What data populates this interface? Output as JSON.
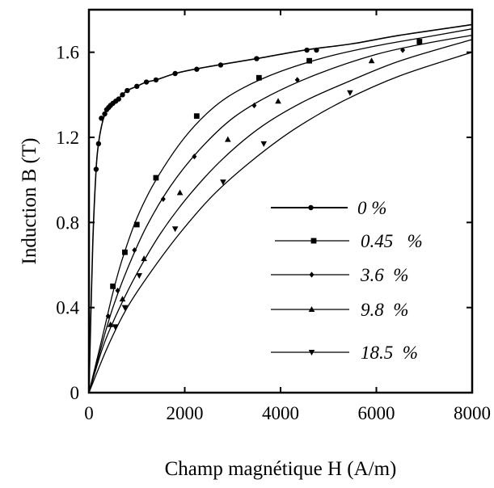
{
  "chart_data": {
    "type": "line",
    "xlabel": "Champ magnétique H (A/m)",
    "ylabel": "Induction B (T)",
    "xlim": [
      0,
      8000
    ],
    "ylim": [
      0,
      1.8
    ],
    "x_ticks": [
      0,
      2000,
      4000,
      6000,
      8000
    ],
    "y_ticks": [
      0,
      0.4,
      0.8,
      1.2,
      1.6
    ],
    "x_tick_labels": [
      "0",
      "2000",
      "4000",
      "6000",
      "8000"
    ],
    "y_tick_labels": [
      "0",
      "0.4",
      "0.8",
      "1.2",
      "1.6"
    ],
    "grid": false,
    "legend_position": "center-right",
    "series": [
      {
        "name": "0 %",
        "marker": "circle",
        "points": [
          [
            0,
            0
          ],
          [
            80,
            0.7
          ],
          [
            150,
            1.05
          ],
          [
            200,
            1.17
          ],
          [
            260,
            1.25
          ],
          [
            320,
            1.3
          ],
          [
            380,
            1.33
          ],
          [
            450,
            1.35
          ],
          [
            550,
            1.37
          ],
          [
            650,
            1.39
          ],
          [
            800,
            1.42
          ],
          [
            1000,
            1.44
          ],
          [
            1200,
            1.46
          ],
          [
            1400,
            1.47
          ],
          [
            1800,
            1.5
          ],
          [
            2200,
            1.52
          ],
          [
            2700,
            1.54
          ],
          [
            3500,
            1.57
          ],
          [
            4500,
            1.61
          ],
          [
            5500,
            1.64
          ],
          [
            6500,
            1.68
          ],
          [
            8000,
            1.73
          ]
        ],
        "markers": [
          [
            150,
            1.05
          ],
          [
            200,
            1.17
          ],
          [
            260,
            1.29
          ],
          [
            330,
            1.31
          ],
          [
            370,
            1.33
          ],
          [
            410,
            1.34
          ],
          [
            450,
            1.35
          ],
          [
            500,
            1.36
          ],
          [
            560,
            1.37
          ],
          [
            620,
            1.38
          ],
          [
            700,
            1.4
          ],
          [
            800,
            1.42
          ],
          [
            1000,
            1.44
          ],
          [
            1200,
            1.46
          ],
          [
            1400,
            1.47
          ],
          [
            1800,
            1.5
          ],
          [
            2250,
            1.52
          ],
          [
            2750,
            1.54
          ],
          [
            3500,
            1.57
          ],
          [
            4550,
            1.61
          ],
          [
            4750,
            1.61
          ]
        ]
      },
      {
        "name": "0.45   %",
        "marker": "square",
        "points": [
          [
            0,
            0
          ],
          [
            300,
            0.28
          ],
          [
            500,
            0.47
          ],
          [
            700,
            0.63
          ],
          [
            1000,
            0.82
          ],
          [
            1400,
            1.0
          ],
          [
            2000,
            1.2
          ],
          [
            2600,
            1.34
          ],
          [
            3200,
            1.43
          ],
          [
            4000,
            1.51
          ],
          [
            5000,
            1.58
          ],
          [
            6000,
            1.63
          ],
          [
            7000,
            1.67
          ],
          [
            8000,
            1.71
          ]
        ],
        "markers": [
          [
            500,
            0.5
          ],
          [
            750,
            0.66
          ],
          [
            1000,
            0.79
          ],
          [
            1400,
            1.01
          ],
          [
            2250,
            1.3
          ],
          [
            3550,
            1.48
          ],
          [
            4600,
            1.56
          ],
          [
            6900,
            1.65
          ]
        ]
      },
      {
        "name": "3.6  %",
        "marker": "diamond",
        "points": [
          [
            0,
            0
          ],
          [
            300,
            0.25
          ],
          [
            500,
            0.4
          ],
          [
            800,
            0.58
          ],
          [
            1200,
            0.78
          ],
          [
            1700,
            0.97
          ],
          [
            2300,
            1.14
          ],
          [
            3000,
            1.29
          ],
          [
            3800,
            1.4
          ],
          [
            4800,
            1.5
          ],
          [
            6000,
            1.59
          ],
          [
            7000,
            1.64
          ],
          [
            8000,
            1.68
          ]
        ],
        "markers": [
          [
            400,
            0.36
          ],
          [
            600,
            0.48
          ],
          [
            950,
            0.67
          ],
          [
            1550,
            0.91
          ],
          [
            2200,
            1.11
          ],
          [
            3450,
            1.35
          ],
          [
            4350,
            1.47
          ],
          [
            6550,
            1.61
          ]
        ]
      },
      {
        "name": "9.8  %",
        "marker": "triangle-up",
        "points": [
          [
            0,
            0
          ],
          [
            300,
            0.22
          ],
          [
            600,
            0.38
          ],
          [
            1000,
            0.56
          ],
          [
            1500,
            0.75
          ],
          [
            2100,
            0.93
          ],
          [
            2800,
            1.1
          ],
          [
            3600,
            1.25
          ],
          [
            4500,
            1.37
          ],
          [
            5500,
            1.47
          ],
          [
            6500,
            1.56
          ],
          [
            8000,
            1.66
          ]
        ],
        "markers": [
          [
            450,
            0.32
          ],
          [
            700,
            0.44
          ],
          [
            1150,
            0.63
          ],
          [
            1900,
            0.94
          ],
          [
            2900,
            1.19
          ],
          [
            3950,
            1.37
          ],
          [
            5900,
            1.56
          ]
        ]
      },
      {
        "name": "18.5  %",
        "marker": "triangle-down",
        "points": [
          [
            0,
            0
          ],
          [
            400,
            0.22
          ],
          [
            800,
            0.4
          ],
          [
            1300,
            0.57
          ],
          [
            1900,
            0.75
          ],
          [
            2600,
            0.93
          ],
          [
            3400,
            1.09
          ],
          [
            4300,
            1.24
          ],
          [
            5300,
            1.37
          ],
          [
            6500,
            1.49
          ],
          [
            8000,
            1.6
          ]
        ],
        "markers": [
          [
            550,
            0.31
          ],
          [
            750,
            0.4
          ],
          [
            1050,
            0.55
          ],
          [
            1800,
            0.77
          ],
          [
            2800,
            0.99
          ],
          [
            3650,
            1.17
          ],
          [
            5450,
            1.41
          ]
        ]
      }
    ]
  }
}
